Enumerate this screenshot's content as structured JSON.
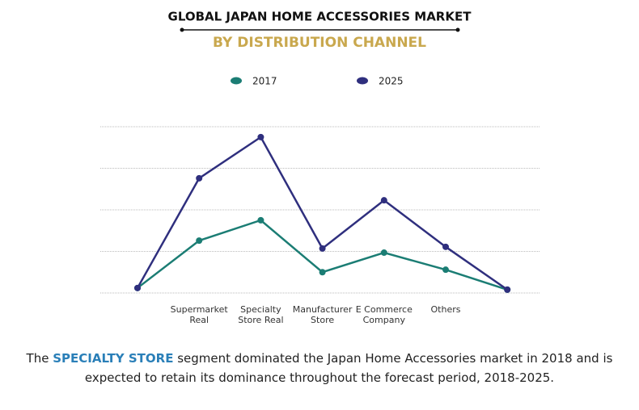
{
  "chart_data": {
    "type": "line",
    "title": "GLOBAL JAPAN HOME ACCESSORIES MARKET",
    "subtitle": "BY DISTRIBUTION CHANNEL",
    "categories": [
      null,
      "Supermarket\nReal",
      "Specialty\nStore Real",
      "Manufacturer\nStore",
      "E Commerce\nCompany",
      "Others",
      null
    ],
    "series": [
      {
        "name": "2017",
        "color": "#1b7d74",
        "values": [
          0.12,
          1.26,
          1.75,
          0.5,
          0.97,
          0.56,
          0.08
        ]
      },
      {
        "name": "2025",
        "color": "#2f2f7e",
        "values": [
          0.12,
          2.76,
          3.75,
          1.07,
          2.23,
          1.11,
          0.08
        ]
      }
    ],
    "ylim": [
      0,
      4
    ],
    "grid": true
  },
  "footer": {
    "before": "The ",
    "highlight": "SPECIALTY STORE",
    "after": " segment dominated the Japan Home Accessories market in 2018 and is expected to retain its dominance throughout the forecast period, 2018-2025."
  }
}
